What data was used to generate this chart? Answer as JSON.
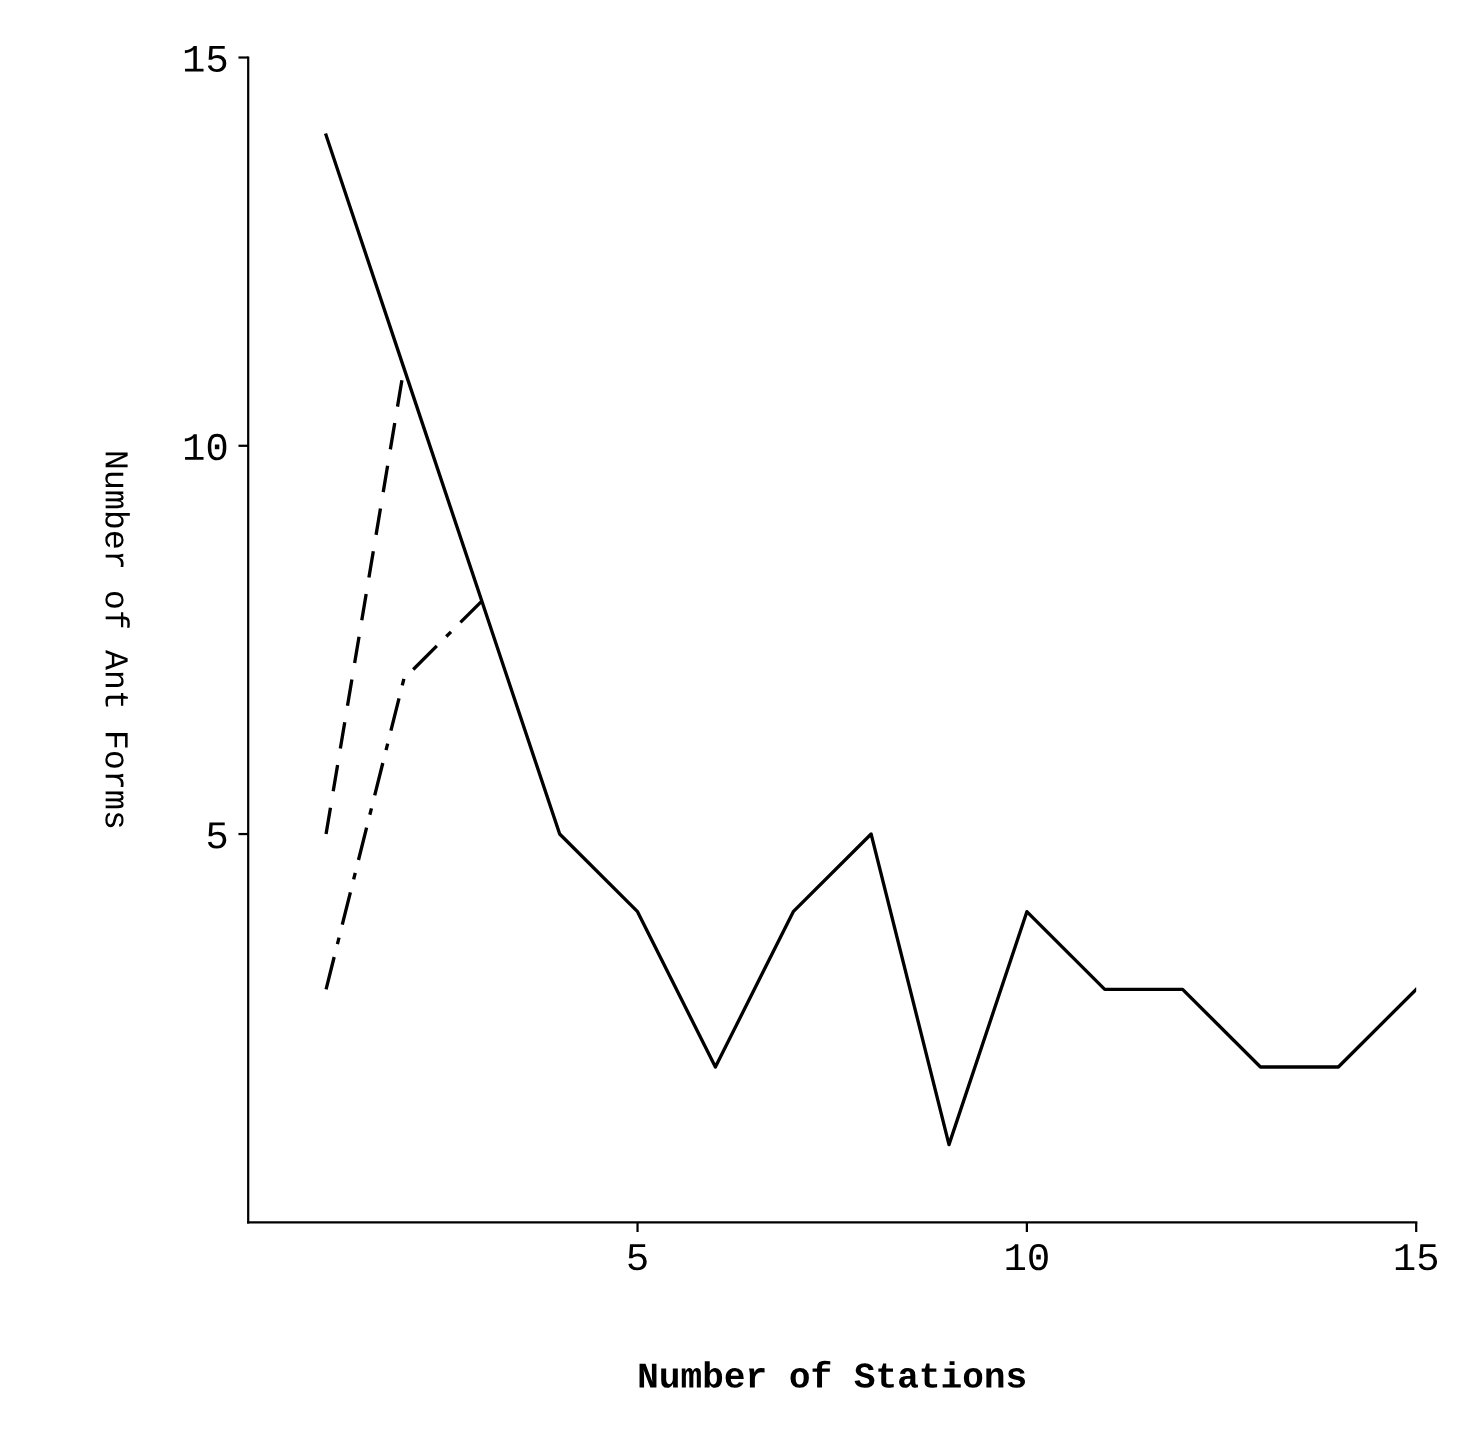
{
  "chart_data": {
    "type": "line",
    "xlabel": "Number of Stations",
    "ylabel": "Number of Ant Forms",
    "xlim": [
      0,
      15
    ],
    "ylim": [
      0,
      15
    ],
    "xticks": [
      5,
      10,
      15
    ],
    "yticks": [
      5,
      10,
      15
    ],
    "grid": false,
    "legend": false,
    "marker": "none",
    "series": [
      {
        "color": "#000000",
        "line_style": "solid",
        "x": [
          1,
          2,
          3,
          4,
          5,
          6,
          7,
          8,
          9,
          10,
          11,
          12,
          13,
          14,
          15
        ],
        "values": [
          14,
          11,
          8,
          5,
          4,
          2,
          4,
          5,
          1,
          4,
          3,
          3,
          2,
          2,
          3
        ]
      },
      {
        "color": "#000000",
        "line_style": "dashed",
        "x": [
          1,
          2
        ],
        "values": [
          5,
          11
        ]
      },
      {
        "color": "#000000",
        "line_style": "dashdot",
        "x": [
          1,
          2,
          3
        ],
        "values": [
          3,
          7,
          8
        ]
      }
    ]
  }
}
